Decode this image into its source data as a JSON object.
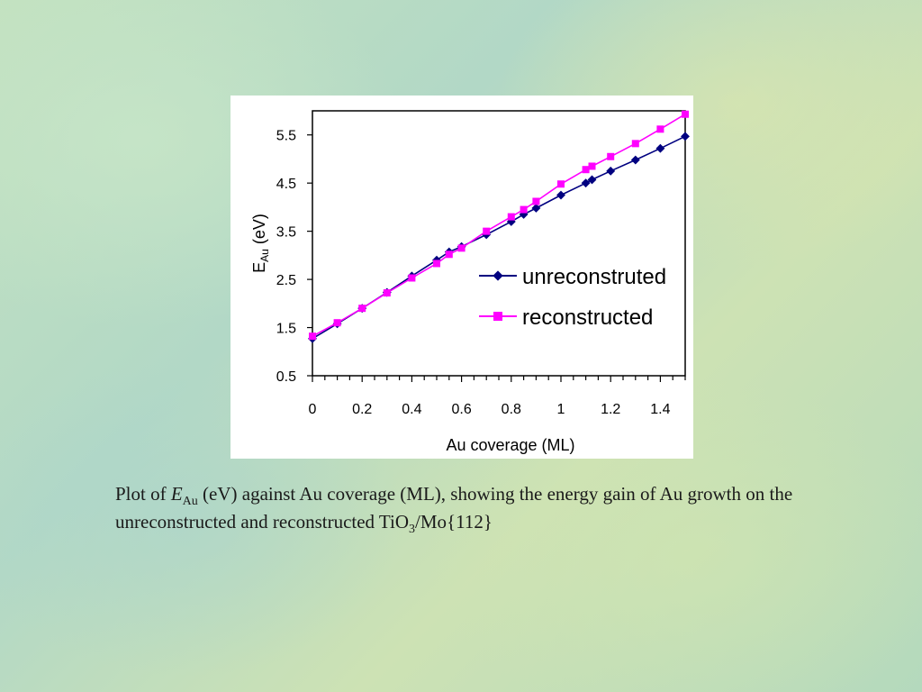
{
  "caption": {
    "prefix": "Plot of ",
    "var_main": "E",
    "var_sub": "Au",
    "mid": " (eV) against Au coverage (ML), showing the energy gain of Au growth on the unreconstructed and reconstructed TiO",
    "sub_3": "3",
    "suffix": "/Mo{112}"
  },
  "chart_data": {
    "type": "line",
    "xlabel": "Au coverage (ML)",
    "ylabel_main": "E",
    "ylabel_sub": "Au",
    "ylabel_unit": " (eV)",
    "xlim": [
      0,
      1.5
    ],
    "ylim": [
      0.5,
      6.0
    ],
    "xticks": [
      "0",
      "0.2",
      "0.4",
      "0.6",
      "0.8",
      "1",
      "1.2",
      "1.4"
    ],
    "xtick_values": [
      0,
      0.2,
      0.4,
      0.6,
      0.8,
      1.0,
      1.2,
      1.4
    ],
    "x_minor_step": 0.05,
    "yticks": [
      "0.5",
      "1.5",
      "2.5",
      "3.5",
      "4.5",
      "5.5"
    ],
    "ytick_values": [
      0.5,
      1.5,
      2.5,
      3.5,
      4.5,
      5.5
    ],
    "grid": false,
    "legend_position": "center-right",
    "series": [
      {
        "name": "unreconstruted",
        "color": "#000080",
        "marker": "diamond",
        "x": [
          0,
          0.1,
          0.2,
          0.3,
          0.4,
          0.5,
          0.55,
          0.6,
          0.7,
          0.8,
          0.85,
          0.9,
          1.0,
          1.1,
          1.125,
          1.2,
          1.3,
          1.4,
          1.5
        ],
        "y": [
          1.27,
          1.58,
          1.9,
          2.23,
          2.57,
          2.9,
          3.07,
          3.18,
          3.43,
          3.7,
          3.85,
          3.98,
          4.25,
          4.5,
          4.57,
          4.75,
          4.98,
          5.22,
          5.47
        ]
      },
      {
        "name": "reconstructed",
        "color": "#ff00ff",
        "marker": "square",
        "x": [
          0,
          0.1,
          0.2,
          0.3,
          0.4,
          0.5,
          0.55,
          0.6,
          0.7,
          0.8,
          0.85,
          0.9,
          1.0,
          1.1,
          1.125,
          1.2,
          1.3,
          1.4,
          1.5
        ],
        "y": [
          1.32,
          1.6,
          1.9,
          2.22,
          2.53,
          2.83,
          3.02,
          3.15,
          3.5,
          3.8,
          3.95,
          4.12,
          4.48,
          4.78,
          4.85,
          5.05,
          5.32,
          5.62,
          5.93
        ]
      }
    ]
  }
}
